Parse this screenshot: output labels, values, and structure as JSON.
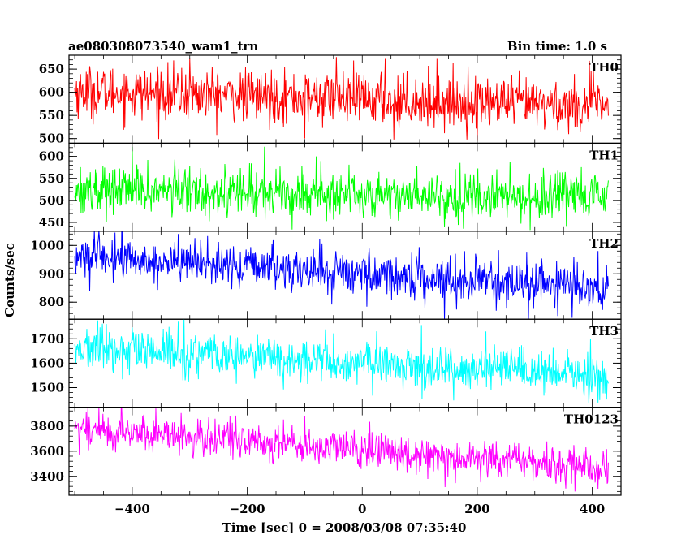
{
  "chart_data": {
    "type": "line",
    "title_left": "ae080308073540_wam1_trn",
    "title_right": "Bin time: 1.0 s",
    "ylabel": "Counts/sec",
    "xlabel": "Time [sec] 0 = 2008/03/08 07:35:40",
    "xlim": [
      -510,
      450
    ],
    "xticks": [
      -400,
      -200,
      0,
      200,
      400
    ],
    "x_range_data": [
      -500,
      428
    ],
    "grid": false,
    "legend": "none",
    "panels": [
      {
        "name": "TH0",
        "color": "#ff0000",
        "ylim": [
          490,
          680
        ],
        "yticks": [
          500,
          550,
          600,
          650
        ],
        "trend": {
          "start": 602,
          "end": 570
        },
        "noise_sd": 28,
        "spikes": [
          {
            "x": -300,
            "y": 672
          },
          {
            "x": -45,
            "y": 676
          },
          {
            "x": 40,
            "y": 672
          },
          {
            "x": 130,
            "y": 672
          },
          {
            "x": 395,
            "y": 668
          },
          {
            "x": -100,
            "y": 500
          },
          {
            "x": 55,
            "y": 498
          },
          {
            "x": 200,
            "y": 495
          }
        ]
      },
      {
        "name": "TH1",
        "color": "#00ff00",
        "ylim": [
          430,
          630
        ],
        "yticks": [
          450,
          500,
          550,
          600
        ],
        "trend": {
          "start": 525,
          "end": 505
        },
        "noise_sd": 27,
        "spikes": [
          {
            "x": -400,
            "y": 622
          },
          {
            "x": -170,
            "y": 622
          },
          {
            "x": -80,
            "y": 600
          },
          {
            "x": 355,
            "y": 440
          }
        ]
      },
      {
        "name": "TH2",
        "color": "#0000ff",
        "ylim": [
          740,
          1050
        ],
        "yticks": [
          800,
          900,
          1000
        ],
        "trend": {
          "start": 960,
          "end": 850
        },
        "noise_sd": 38,
        "spikes": [
          {
            "x": -430,
            "y": 1045
          },
          {
            "x": -320,
            "y": 1040
          },
          {
            "x": 365,
            "y": 745
          },
          {
            "x": 410,
            "y": 980
          }
        ]
      },
      {
        "name": "TH3",
        "color": "#00ffff",
        "ylim": [
          1420,
          1780
        ],
        "yticks": [
          1500,
          1600,
          1700
        ],
        "trend": {
          "start": 1660,
          "end": 1545
        },
        "noise_sd": 45,
        "spikes": [
          {
            "x": -460,
            "y": 1775
          },
          {
            "x": -320,
            "y": 1770
          },
          {
            "x": 215,
            "y": 1730
          }
        ]
      },
      {
        "name": "TH0123",
        "color": "#ff00ff",
        "ylim": [
          3250,
          3950
        ],
        "yticks": [
          3400,
          3600,
          3800
        ],
        "trend": {
          "start": 3780,
          "end": 3470
        },
        "noise_sd": 75,
        "spikes": [
          {
            "x": -480,
            "y": 3910
          },
          {
            "x": -380,
            "y": 3890
          },
          {
            "x": 370,
            "y": 3280
          },
          {
            "x": 410,
            "y": 3300
          }
        ]
      }
    ]
  }
}
